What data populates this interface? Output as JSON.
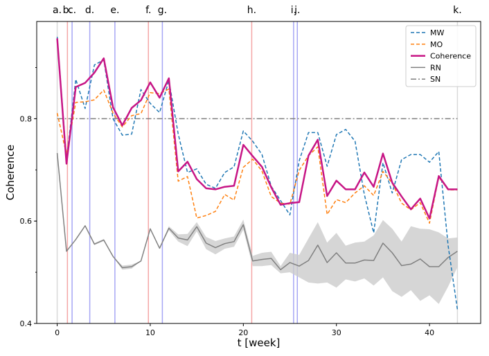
{
  "chart_data": {
    "type": "line",
    "xlabel": "t [week]",
    "ylabel": "Coherence",
    "xlim": [
      -2.2,
      45.5
    ],
    "ylim": [
      0.4,
      0.99
    ],
    "xticks": [
      0,
      10,
      20,
      30,
      40
    ],
    "yticks": [
      0.4,
      0.6,
      0.8
    ],
    "legend_position": "top-right",
    "colors": {
      "MW": "#1f77b4",
      "MO": "#ff7f0e",
      "Coherence": "#c71585",
      "RN": "#808080",
      "SN": "#808080",
      "band": "#cccccc",
      "event_red": "#f4a6a6",
      "event_blue": "#a6a6f4",
      "event_gray": "#d9d9d9"
    },
    "events": [
      {
        "label": "a.",
        "x": 0.0,
        "kind": "gray"
      },
      {
        "label": "b.",
        "x": 1.1,
        "kind": "red"
      },
      {
        "label": "c.",
        "x": 1.6,
        "kind": "blue"
      },
      {
        "label": "d.",
        "x": 3.5,
        "kind": "blue"
      },
      {
        "label": "e.",
        "x": 6.2,
        "kind": "blue"
      },
      {
        "label": "f.",
        "x": 9.8,
        "kind": "red"
      },
      {
        "label": "g.",
        "x": 11.3,
        "kind": "blue"
      },
      {
        "label": "h.",
        "x": 20.9,
        "kind": "red"
      },
      {
        "label": "i.",
        "x": 25.4,
        "kind": "blue"
      },
      {
        "label": "j.",
        "x": 25.8,
        "kind": "blue"
      },
      {
        "label": "k.",
        "x": 43.0,
        "kind": "gray"
      }
    ],
    "series": [
      {
        "name": "MW",
        "style": "dashed",
        "x": [
          0,
          1,
          2,
          3,
          4,
          5,
          6,
          7,
          8,
          9,
          10,
          11,
          12,
          13,
          14,
          15,
          16,
          17,
          18,
          19,
          20,
          21,
          22,
          23,
          24,
          25,
          26,
          27,
          28,
          29,
          30,
          31,
          32,
          33,
          34,
          35,
          36,
          37,
          38,
          39,
          40,
          41,
          42,
          43
        ],
        "values": [
          0.96,
          0.72,
          0.877,
          0.82,
          0.905,
          0.915,
          0.8,
          0.768,
          0.77,
          0.857,
          0.83,
          0.812,
          0.875,
          0.77,
          0.695,
          0.702,
          0.672,
          0.664,
          0.695,
          0.706,
          0.776,
          0.756,
          0.73,
          0.668,
          0.64,
          0.612,
          0.718,
          0.773,
          0.773,
          0.707,
          0.769,
          0.779,
          0.756,
          0.652,
          0.577,
          0.714,
          0.655,
          0.72,
          0.73,
          0.73,
          0.715,
          0.736,
          0.552,
          0.427
        ]
      },
      {
        "name": "MO",
        "style": "dashed",
        "x": [
          0,
          1,
          2,
          3,
          4,
          5,
          6,
          7,
          8,
          9,
          10,
          11,
          12,
          13,
          14,
          15,
          16,
          17,
          18,
          19,
          20,
          21,
          22,
          23,
          24,
          25,
          26,
          27,
          28,
          29,
          30,
          31,
          32,
          33,
          34,
          35,
          36,
          37,
          38,
          39,
          40,
          41,
          42,
          43
        ],
        "values": [
          0.811,
          0.73,
          0.832,
          0.833,
          0.837,
          0.856,
          0.811,
          0.784,
          0.806,
          0.81,
          0.851,
          0.849,
          0.858,
          0.678,
          0.687,
          0.606,
          0.611,
          0.619,
          0.652,
          0.641,
          0.705,
          0.721,
          0.698,
          0.648,
          0.635,
          0.633,
          0.699,
          0.728,
          0.745,
          0.613,
          0.642,
          0.636,
          0.655,
          0.669,
          0.65,
          0.697,
          0.674,
          0.635,
          0.622,
          0.636,
          0.596,
          0.686,
          0.661,
          0.661
        ]
      },
      {
        "name": "Coherence",
        "style": "solid",
        "x": [
          0,
          1,
          2,
          3,
          4,
          5,
          6,
          7,
          8,
          9,
          10,
          11,
          12,
          13,
          14,
          15,
          16,
          17,
          18,
          19,
          20,
          21,
          22,
          23,
          24,
          25,
          26,
          27,
          28,
          29,
          30,
          31,
          32,
          33,
          34,
          35,
          36,
          37,
          38,
          39,
          40,
          41,
          42,
          43
        ],
        "values": [
          0.957,
          0.712,
          0.862,
          0.87,
          0.89,
          0.918,
          0.822,
          0.787,
          0.821,
          0.836,
          0.871,
          0.841,
          0.879,
          0.697,
          0.716,
          0.682,
          0.664,
          0.662,
          0.667,
          0.669,
          0.749,
          0.727,
          0.706,
          0.666,
          0.632,
          0.635,
          0.637,
          0.728,
          0.759,
          0.649,
          0.679,
          0.662,
          0.662,
          0.695,
          0.667,
          0.732,
          0.675,
          0.648,
          0.623,
          0.644,
          0.605,
          0.688,
          0.662,
          0.662
        ]
      },
      {
        "name": "RN",
        "style": "solid",
        "x": [
          0,
          1,
          2,
          3,
          4,
          5,
          6,
          7,
          8,
          9,
          10,
          11,
          12,
          13,
          14,
          15,
          16,
          17,
          18,
          19,
          20,
          21,
          22,
          23,
          24,
          25,
          26,
          27,
          28,
          29,
          30,
          31,
          32,
          33,
          34,
          35,
          36,
          37,
          38,
          39,
          40,
          41,
          42,
          43
        ],
        "values": [
          0.733,
          0.541,
          0.564,
          0.591,
          0.555,
          0.563,
          0.531,
          0.509,
          0.511,
          0.522,
          0.585,
          0.547,
          0.586,
          0.567,
          0.563,
          0.589,
          0.557,
          0.548,
          0.556,
          0.56,
          0.593,
          0.522,
          0.525,
          0.527,
          0.505,
          0.519,
          0.512,
          0.523,
          0.553,
          0.519,
          0.538,
          0.518,
          0.518,
          0.524,
          0.523,
          0.557,
          0.538,
          0.513,
          0.516,
          0.526,
          0.511,
          0.511,
          0.529,
          0.541
        ],
        "band_lower": [
          0.733,
          0.541,
          0.564,
          0.591,
          0.553,
          0.561,
          0.531,
          0.505,
          0.507,
          0.522,
          0.585,
          0.547,
          0.582,
          0.56,
          0.551,
          0.58,
          0.545,
          0.535,
          0.546,
          0.55,
          0.583,
          0.512,
          0.512,
          0.514,
          0.498,
          0.5,
          0.49,
          0.48,
          0.478,
          0.48,
          0.47,
          0.486,
          0.482,
          0.488,
          0.474,
          0.49,
          0.463,
          0.452,
          0.465,
          0.444,
          0.455,
          0.438,
          0.472,
          0.51
        ],
        "band_upper": [
          0.733,
          0.541,
          0.564,
          0.591,
          0.557,
          0.565,
          0.531,
          0.513,
          0.515,
          0.522,
          0.585,
          0.547,
          0.59,
          0.574,
          0.575,
          0.598,
          0.569,
          0.561,
          0.566,
          0.57,
          0.603,
          0.532,
          0.538,
          0.54,
          0.512,
          0.538,
          0.534,
          0.566,
          0.598,
          0.558,
          0.577,
          0.552,
          0.558,
          0.56,
          0.572,
          0.602,
          0.585,
          0.56,
          0.59,
          0.585,
          0.584,
          0.578,
          0.566,
          0.568
        ]
      },
      {
        "name": "SN",
        "style": "dashdot",
        "x": [
          0,
          43
        ],
        "values": [
          0.8,
          0.8
        ]
      }
    ]
  }
}
